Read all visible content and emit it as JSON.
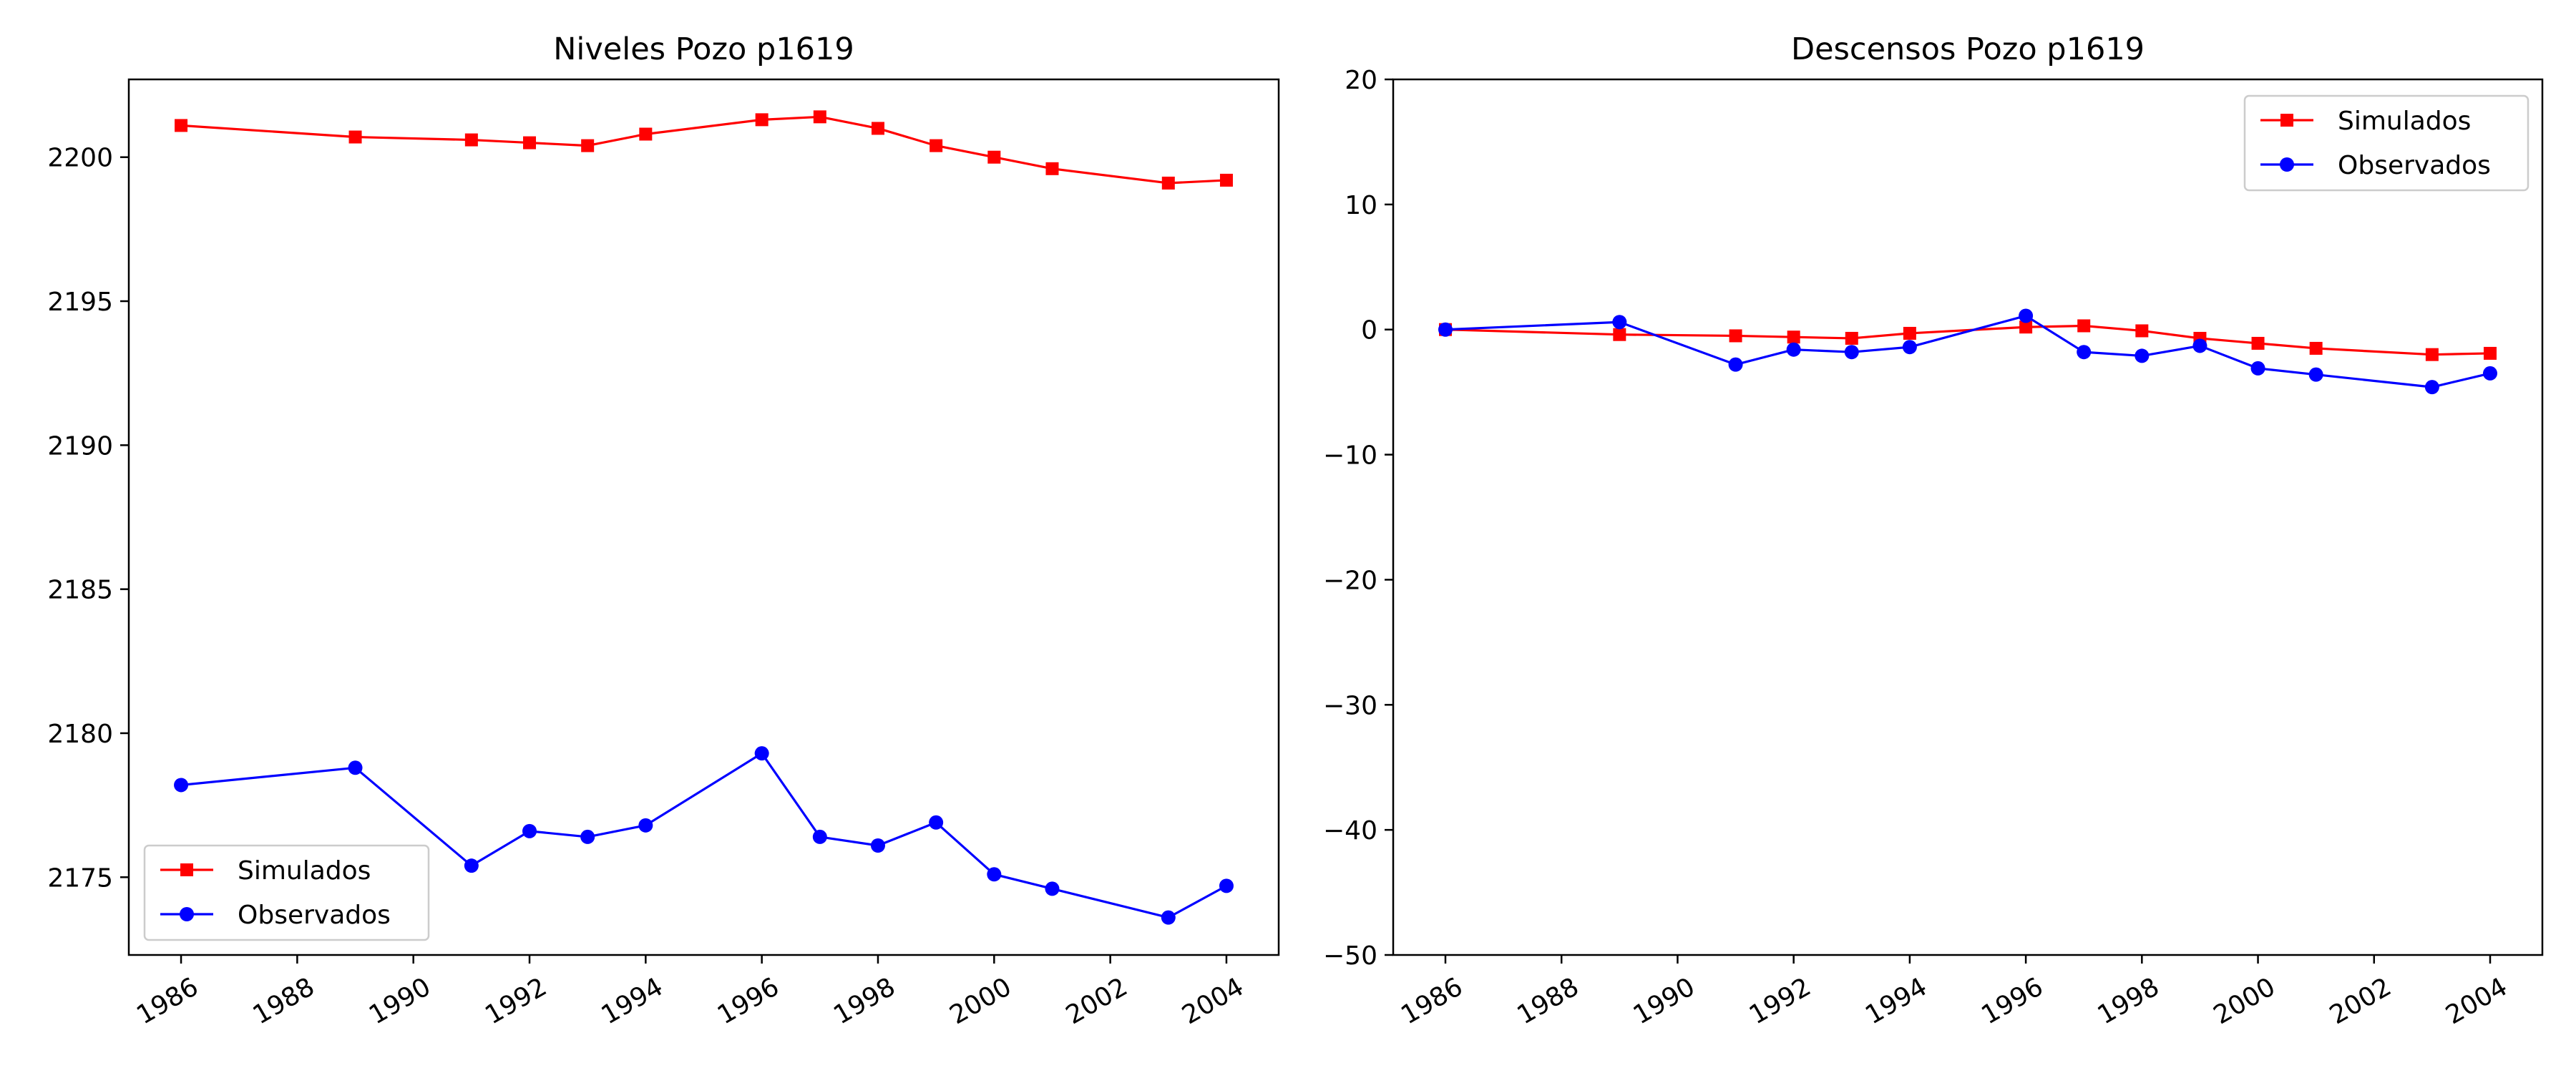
{
  "chart_data": [
    {
      "type": "line",
      "title": "Niveles Pozo p1619",
      "xlabel": "",
      "ylabel": "",
      "xlim": [
        1985.1,
        2004.9
      ],
      "ylim": [
        2172.3,
        2202.7
      ],
      "x_ticks": [
        1986,
        1988,
        1990,
        1992,
        1994,
        1996,
        1998,
        2000,
        2002,
        2004
      ],
      "y_ticks": [
        2175,
        2180,
        2185,
        2190,
        2195,
        2200
      ],
      "grid": false,
      "legend_position": "lower-left",
      "series": [
        {
          "name": "Simulados",
          "color": "#ff0000",
          "marker": "square",
          "x": [
            1986,
            1989,
            1991,
            1992,
            1993,
            1994,
            1996,
            1997,
            1998,
            1999,
            2000,
            2001,
            2003,
            2004
          ],
          "values": [
            2201.1,
            2200.7,
            2200.6,
            2200.5,
            2200.4,
            2200.8,
            2201.3,
            2201.4,
            2201.0,
            2200.4,
            2200.0,
            2199.6,
            2199.1,
            2199.2
          ]
        },
        {
          "name": "Observados",
          "color": "#0000ff",
          "marker": "circle",
          "x": [
            1986,
            1989,
            1991,
            1992,
            1993,
            1994,
            1996,
            1997,
            1998,
            1999,
            2000,
            2001,
            2003,
            2004
          ],
          "values": [
            2178.2,
            2178.8,
            2175.4,
            2176.6,
            2176.4,
            2176.8,
            2179.3,
            2176.4,
            2176.1,
            2176.9,
            2175.1,
            2174.6,
            2173.6,
            2174.7
          ]
        }
      ]
    },
    {
      "type": "line",
      "title": "Descensos Pozo p1619",
      "xlabel": "",
      "ylabel": "",
      "xlim": [
        1985.1,
        2004.9
      ],
      "ylim": [
        -50,
        20
      ],
      "x_ticks": [
        1986,
        1988,
        1990,
        1992,
        1994,
        1996,
        1998,
        2000,
        2002,
        2004
      ],
      "y_ticks": [
        -50,
        -40,
        -30,
        -20,
        -10,
        0,
        10,
        20
      ],
      "grid": false,
      "legend_position": "upper-right",
      "series": [
        {
          "name": "Simulados",
          "color": "#ff0000",
          "marker": "square",
          "x": [
            1986,
            1989,
            1991,
            1992,
            1993,
            1994,
            1996,
            1997,
            1998,
            1999,
            2000,
            2001,
            2003,
            2004
          ],
          "values": [
            0.0,
            -0.4,
            -0.5,
            -0.6,
            -0.7,
            -0.3,
            0.2,
            0.3,
            -0.1,
            -0.7,
            -1.1,
            -1.5,
            -2.0,
            -1.9
          ]
        },
        {
          "name": "Observados",
          "color": "#0000ff",
          "marker": "circle",
          "x": [
            1986,
            1989,
            1991,
            1992,
            1993,
            1994,
            1996,
            1997,
            1998,
            1999,
            2000,
            2001,
            2003,
            2004
          ],
          "values": [
            0.0,
            0.6,
            -2.8,
            -1.6,
            -1.8,
            -1.4,
            1.1,
            -1.8,
            -2.1,
            -1.3,
            -3.1,
            -3.6,
            -4.6,
            -3.5
          ]
        }
      ]
    }
  ]
}
